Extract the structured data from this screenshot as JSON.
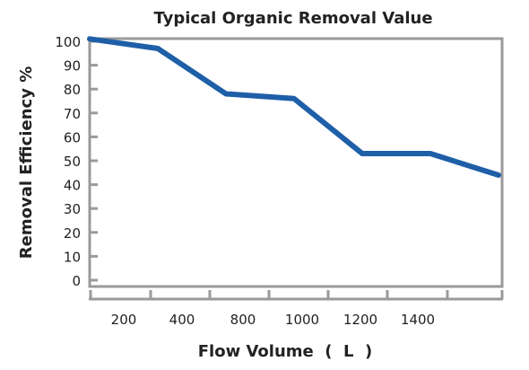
{
  "chart_data": {
    "type": "line",
    "title": "Typical Organic Removal Value",
    "xlabel": "Flow Volume  (  L  )",
    "ylabel": "Removal Efficiency %",
    "x_tick_labels": [
      "200",
      "400",
      "800",
      "1000",
      "1200",
      "1400"
    ],
    "y_ticks": [
      0,
      10,
      20,
      30,
      40,
      50,
      60,
      70,
      80,
      90,
      100
    ],
    "ylim": [
      0,
      100
    ],
    "grid": false,
    "series": [
      {
        "points": [
          {
            "x": 0,
            "y": 101
          },
          {
            "x": 375,
            "y": 97
          },
          {
            "x": 750,
            "y": 78
          },
          {
            "x": 1125,
            "y": 76
          },
          {
            "x": 1500,
            "y": 53
          },
          {
            "x": 1875,
            "y": 53
          },
          {
            "x": 2250,
            "y": 44
          }
        ]
      }
    ],
    "colors": {
      "line": "#1f5fa8",
      "axis": "#9a9a9a",
      "text": "#222222"
    }
  }
}
